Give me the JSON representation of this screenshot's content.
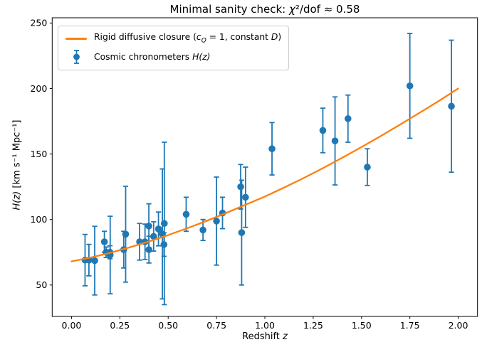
{
  "title": {
    "pre": "Minimal sanity check: ",
    "chi": "χ",
    "post": "²/dof ≈ 0.58"
  },
  "axes": {
    "xlabel": {
      "pre": "Redshift ",
      "var": "z"
    },
    "ylabel": {
      "var": "H(z)",
      "units": " [km s⁻¹ Mpc⁻¹]"
    },
    "xticks": [
      "0.00",
      "0.25",
      "0.50",
      "0.75",
      "1.00",
      "1.25",
      "1.50",
      "1.75",
      "2.00"
    ],
    "yticks": [
      "50",
      "100",
      "150",
      "200",
      "250"
    ]
  },
  "legend": {
    "line1": {
      "pre": "Rigid diffusive closure (",
      "c": "c",
      "sub": "Q",
      "mid": " = 1, constant ",
      "d": "D",
      "post": ")"
    },
    "line2": {
      "pre": "Cosmic chronometers ",
      "math": "H(z)"
    }
  },
  "colors": {
    "curve": "#ff7f0e",
    "points": "#1f77b4",
    "text": "#000000",
    "spine": "#000000",
    "legend_border": "#cccccc"
  },
  "chart_data": {
    "type": "scatter",
    "title": "Minimal sanity check: χ²/dof ≈ 0.58",
    "xlabel": "Redshift z",
    "ylabel": "H(z) [km s⁻¹ Mpc⁻¹]",
    "xlim": [
      -0.1,
      2.1
    ],
    "ylim": [
      26,
      254
    ],
    "xtick_values": [
      0.0,
      0.25,
      0.5,
      0.75,
      1.0,
      1.25,
      1.5,
      1.75,
      2.0
    ],
    "ytick_values": [
      50,
      100,
      150,
      200,
      250
    ],
    "grid": false,
    "legend_position": "upper left",
    "series": [
      {
        "name": "Rigid diffusive closure (c_Q = 1, constant D)",
        "type": "line",
        "color": "#ff7f0e",
        "x": [
          0.0,
          0.1,
          0.2,
          0.3,
          0.4,
          0.5,
          0.6,
          0.7,
          0.8,
          0.9,
          1.0,
          1.1,
          1.2,
          1.3,
          1.4,
          1.5,
          1.6,
          1.7,
          1.8,
          1.9,
          2.0
        ],
        "y": [
          68.0,
          71.0,
          74.6,
          78.7,
          83.2,
          88.1,
          93.4,
          99.0,
          105.0,
          111.3,
          117.5,
          124.4,
          131.6,
          139.2,
          147.1,
          155.3,
          163.8,
          172.5,
          181.4,
          190.5,
          200.0
        ]
      },
      {
        "name": "Cosmic chronometers H(z)",
        "type": "scatter-errorbar",
        "color": "#1f77b4",
        "columns": [
          "z",
          "H",
          "err"
        ],
        "points": [
          [
            0.07,
            69.0,
            19.6
          ],
          [
            0.09,
            69.0,
            12.0
          ],
          [
            0.12,
            68.6,
            26.2
          ],
          [
            0.17,
            83.0,
            8.0
          ],
          [
            0.179,
            75.0,
            4.0
          ],
          [
            0.199,
            75.0,
            5.0
          ],
          [
            0.2,
            72.9,
            29.6
          ],
          [
            0.27,
            77.0,
            14.0
          ],
          [
            0.28,
            88.8,
            36.6
          ],
          [
            0.352,
            83.0,
            14.0
          ],
          [
            0.3802,
            83.0,
            13.5
          ],
          [
            0.4,
            95.0,
            17.0
          ],
          [
            0.4004,
            77.0,
            10.2
          ],
          [
            0.4247,
            87.1,
            11.2
          ],
          [
            0.4497,
            92.8,
            12.9
          ],
          [
            0.47,
            89.0,
            49.6
          ],
          [
            0.4783,
            80.9,
            9.0
          ],
          [
            0.48,
            97.0,
            62.0
          ],
          [
            0.593,
            104.0,
            13.0
          ],
          [
            0.68,
            92.0,
            8.0
          ],
          [
            0.75,
            98.8,
            33.6
          ],
          [
            0.781,
            105.0,
            12.0
          ],
          [
            0.875,
            125.0,
            17.0
          ],
          [
            0.88,
            90.0,
            40.0
          ],
          [
            0.9,
            117.0,
            23.0
          ],
          [
            1.037,
            154.0,
            20.0
          ],
          [
            1.3,
            168.0,
            17.0
          ],
          [
            1.363,
            160.0,
            33.6
          ],
          [
            1.43,
            177.0,
            18.0
          ],
          [
            1.53,
            140.0,
            14.0
          ],
          [
            1.75,
            202.0,
            40.0
          ],
          [
            1.965,
            186.5,
            50.4
          ]
        ]
      }
    ]
  }
}
